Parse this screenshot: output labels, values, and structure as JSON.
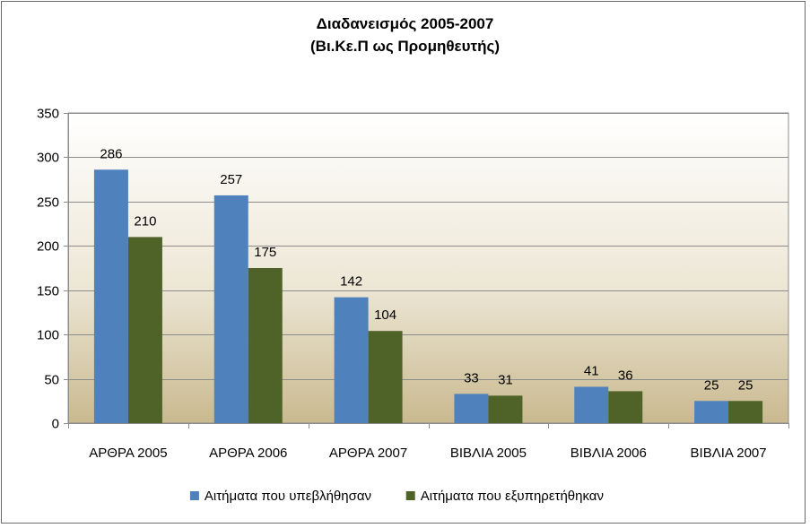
{
  "chart_data": {
    "type": "bar",
    "title": [
      "Διαδανεισμός 2005-2007",
      "(Βι.Κε.Π ως Προμηθευτής)"
    ],
    "categories": [
      "ΑΡΘΡΑ 2005",
      "ΑΡΘΡΑ 2006",
      "ΑΡΘΡΑ 2007",
      "ΒΙΒΛΙΑ 2005",
      "ΒΙΒΛΙΑ 2006",
      "ΒΙΒΛΙΑ 2007"
    ],
    "series": [
      {
        "name": "Αιτήματα που υπεβλήθησαν",
        "values": [
          286,
          257,
          142,
          33,
          41,
          25
        ],
        "color": "#4f81bd"
      },
      {
        "name": "Αιτήματα που εξυπηρετήθηκαν",
        "values": [
          210,
          175,
          104,
          31,
          36,
          25
        ],
        "color": "#4f6228"
      }
    ],
    "ylim": [
      0,
      350
    ],
    "yticks": [
      0,
      50,
      100,
      150,
      200,
      250,
      300,
      350
    ],
    "grid": true,
    "legend_position": "bottom",
    "data_labels": true,
    "plot_background": "gradient: white top to tan bottom",
    "xlabel": "",
    "ylabel": ""
  }
}
